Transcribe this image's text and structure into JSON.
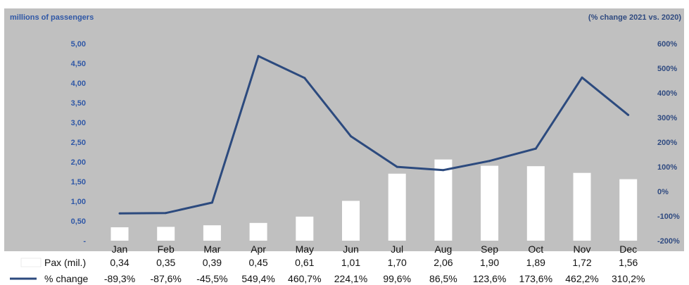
{
  "chart_data": {
    "type": "bar",
    "left_axis_title": "millions of passengers",
    "right_axis_title": "(% change 2021 vs. 2020)",
    "categories": [
      "Jan",
      "Feb",
      "Mar",
      "Apr",
      "May",
      "Jun",
      "Jul",
      "Aug",
      "Sep",
      "Oct",
      "Nov",
      "Dec"
    ],
    "left_ticks": [
      "-",
      "0,50",
      "1,00",
      "1,50",
      "2,00",
      "2,50",
      "3,00",
      "3,50",
      "4,00",
      "4,50",
      "5,00"
    ],
    "left_tick_values": [
      0,
      0.5,
      1,
      1.5,
      2,
      2.5,
      3,
      3.5,
      4,
      4.5,
      5
    ],
    "ylim": [
      0,
      5
    ],
    "right_ticks": [
      "-200%",
      "-100%",
      "0%",
      "100%",
      "200%",
      "300%",
      "400%",
      "500%",
      "600%"
    ],
    "right_tick_values": [
      -200,
      -100,
      0,
      100,
      200,
      300,
      400,
      500,
      600
    ],
    "y2lim": [
      -200,
      600
    ],
    "series": [
      {
        "name": "Pax (mil.)",
        "type": "bar",
        "axis": "left",
        "color": "#ffffff",
        "values": [
          0.34,
          0.35,
          0.39,
          0.45,
          0.61,
          1.01,
          1.7,
          2.06,
          1.9,
          1.89,
          1.72,
          1.56
        ],
        "labels": [
          "0,34",
          "0,35",
          "0,39",
          "0,45",
          "0,61",
          "1,01",
          "1,70",
          "2,06",
          "1,90",
          "1,89",
          "1,72",
          "1,56"
        ]
      },
      {
        "name": "% change",
        "type": "line",
        "axis": "right",
        "color": "#2c4a7e",
        "values": [
          -89.3,
          -87.6,
          -45.5,
          549.4,
          460.7,
          224.1,
          99.6,
          86.5,
          123.6,
          173.6,
          462.2,
          310.2
        ],
        "labels": [
          "-89,3%",
          "-87,6%",
          "-45,5%",
          "549,4%",
          "460,7%",
          "224,1%",
          "99,6%",
          "86,5%",
          "123,6%",
          "173,6%",
          "462,2%",
          "310,2%"
        ]
      }
    ],
    "grid": false,
    "plot_background": "#c0c0c0",
    "legend": "data-table-left"
  }
}
